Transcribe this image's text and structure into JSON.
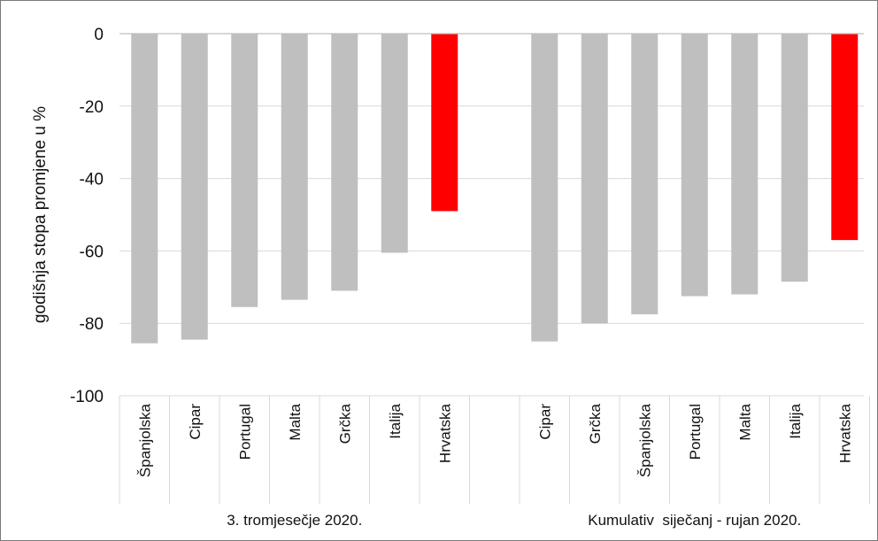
{
  "chart_data": {
    "type": "bar",
    "ylabel": "godišnja stopa promjene u %",
    "ylim": [
      -100,
      0
    ],
    "yticks": [
      0,
      -20,
      -40,
      -60,
      -80,
      -100
    ],
    "grid": true,
    "groups": [
      {
        "label": "3. tromjesečje 2020.",
        "categories": [
          "Španjolska",
          "Cipar",
          "Portugal",
          "Malta",
          "Grčka",
          "Italija",
          "Hrvatska"
        ],
        "values": [
          -85.5,
          -84.5,
          -75.5,
          -73.5,
          -71,
          -60.5,
          -49
        ]
      },
      {
        "label": "Kumulativ  siječanj - rujan 2020.",
        "categories": [
          "Cipar",
          "Grčka",
          "Španjolska",
          "Portugal",
          "Malta",
          "Italija",
          "Hrvatska"
        ],
        "values": [
          -85,
          -80,
          -77.5,
          -72.5,
          -72,
          -68.5,
          -57
        ]
      }
    ],
    "colors": {
      "default": "#bfbfbf",
      "highlight": "#ff0000",
      "grid": "#d9d9d9",
      "axis": "#bfbfbf"
    },
    "highlight_category": "Hrvatska"
  }
}
